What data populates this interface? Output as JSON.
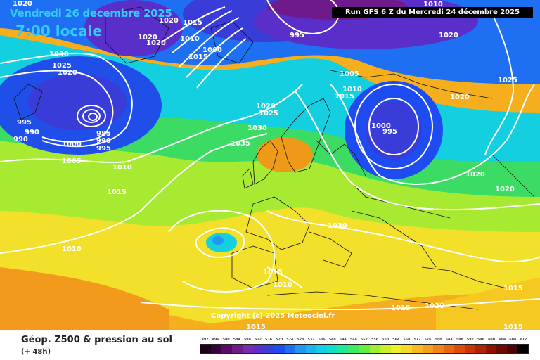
{
  "header": {
    "date_line": "Vendredi 26 decembre 2025",
    "time_line": "7:00 locale",
    "run_info": "Run GFS 6 Z du Mercredi 24 décembre 2025"
  },
  "footer": {
    "product_title": "Géop. Z500 & pression au sol",
    "lead_time": "(+ 48h)",
    "copyright": "Copyright (c) 2025 Meteociel.fr"
  },
  "colorscale": {
    "labels": [
      "492",
      "496",
      "500",
      "504",
      "508",
      "512",
      "516",
      "520",
      "524",
      "528",
      "532",
      "536",
      "540",
      "544",
      "548",
      "552",
      "556",
      "560",
      "564",
      "568",
      "572",
      "576",
      "580",
      "584",
      "588",
      "592",
      "596",
      "600",
      "604",
      "608",
      "612"
    ],
    "colors": [
      "#1a001a",
      "#38003c",
      "#5a0a66",
      "#6e1a8a",
      "#7a2ab0",
      "#5a2ec8",
      "#3a3cd8",
      "#1e4cf0",
      "#1f6ff5",
      "#2196f3",
      "#1ab4f0",
      "#14d0e6",
      "#12e0c4",
      "#20e89a",
      "#3cec66",
      "#66ee3c",
      "#9af030",
      "#c8f02a",
      "#f0f02a",
      "#f6d828",
      "#f6bc22",
      "#f6a01c",
      "#f08414",
      "#e8680e",
      "#e04c08",
      "#cc3404",
      "#b02202",
      "#8e1202",
      "#6c0a02",
      "#4e0402",
      "#000000"
    ]
  },
  "map": {
    "pressure_labels": [
      "1020",
      "1020",
      "1015",
      "1020",
      "1020",
      "1010",
      "1060",
      "1030",
      "1025",
      "1020",
      "995",
      "990",
      "990",
      "985",
      "990",
      "995",
      "1000",
      "1005",
      "995",
      "1010",
      "1015",
      "1020",
      "1025",
      "1030",
      "1035",
      "1005",
      "1010",
      "1015",
      "1000",
      "995",
      "1020",
      "1025",
      "1020",
      "1020",
      "1030",
      "1010",
      "1010",
      "1015",
      "1010",
      "1015",
      "1020",
      "1020",
      "1015",
      "1015",
      "1015",
      "1015"
    ]
  }
}
